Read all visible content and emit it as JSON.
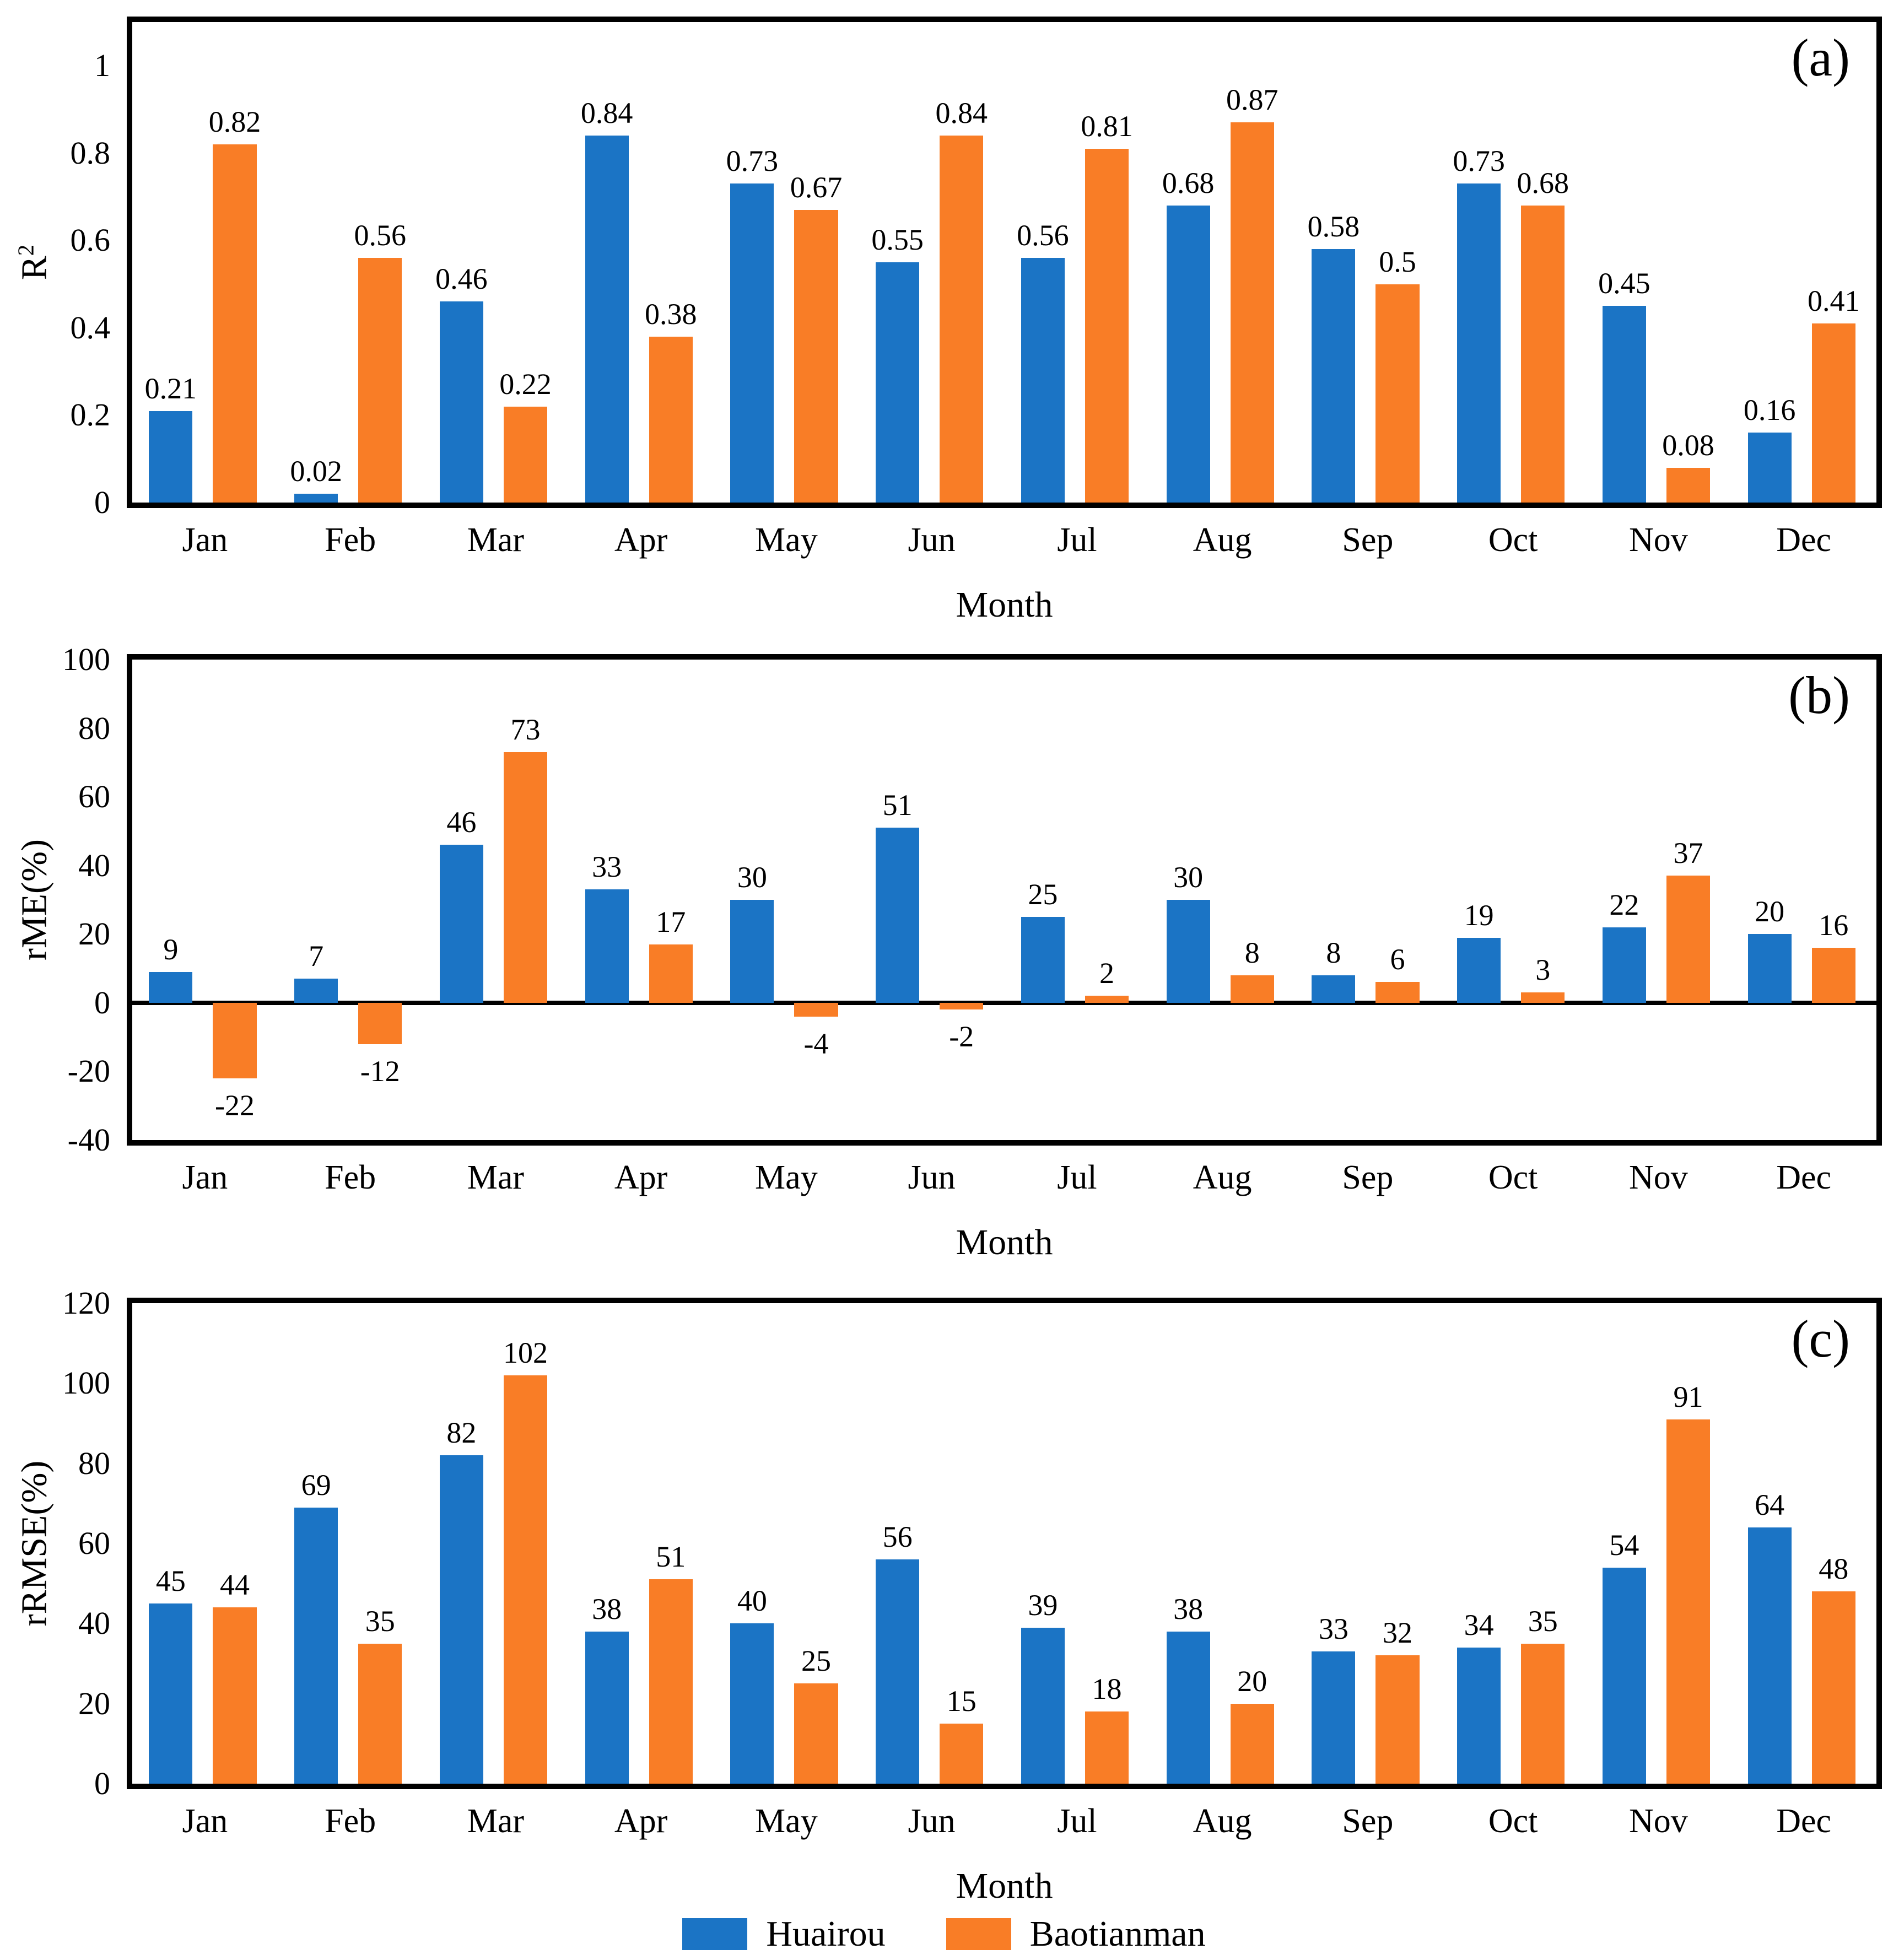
{
  "figure": {
    "xlabel": "Month",
    "months": [
      "Jan",
      "Feb",
      "Mar",
      "Apr",
      "May",
      "Jun",
      "Jul",
      "Aug",
      "Sep",
      "Oct",
      "Nov",
      "Dec"
    ],
    "colors": {
      "huairou": "#1B74C5",
      "baotianman": "#F97D26",
      "axis": "#000000"
    },
    "legend": [
      {
        "label": "Huairou",
        "color": "#1B74C5"
      },
      {
        "label": "Baotianman",
        "color": "#F97D26"
      }
    ]
  },
  "chart_data": [
    {
      "type": "bar",
      "panel_label": "(a)",
      "ylabel_base": "R",
      "ylabel_sup": "2",
      "xlabel": "Month",
      "legend_position": "bottom",
      "grid": false,
      "categories": [
        "Jan",
        "Feb",
        "Mar",
        "Apr",
        "May",
        "Jun",
        "Jul",
        "Aug",
        "Sep",
        "Oct",
        "Nov",
        "Dec"
      ],
      "ylim": [
        0,
        1.1
      ],
      "yticks": [
        {
          "v": 1,
          "t": "1"
        },
        {
          "v": 0.8,
          "t": "0.8"
        },
        {
          "v": 0.6,
          "t": "0.6"
        },
        {
          "v": 0.4,
          "t": "0.4"
        },
        {
          "v": 0.2,
          "t": "0.2"
        },
        {
          "v": 0,
          "t": "0"
        }
      ],
      "series": [
        {
          "name": "Huairou",
          "color": "#1B74C5",
          "values": [
            0.21,
            0.02,
            0.46,
            0.84,
            0.73,
            0.55,
            0.56,
            0.68,
            0.58,
            0.73,
            0.45,
            0.16
          ],
          "labels": [
            "0.21",
            "0.02",
            "0.46",
            "0.84",
            "0.73",
            "0.55",
            "0.56",
            "0.68",
            "0.58",
            "0.73",
            "0.45",
            "0.16"
          ]
        },
        {
          "name": "Baotianman",
          "color": "#F97D26",
          "values": [
            0.82,
            0.56,
            0.22,
            0.38,
            0.67,
            0.84,
            0.81,
            0.87,
            0.5,
            0.68,
            0.08,
            0.41
          ],
          "labels": [
            "0.82",
            "0.56",
            "0.22",
            "0.38",
            "0.67",
            "0.84",
            "0.81",
            "0.87",
            "0.5",
            "0.68",
            "0.08",
            "0.41"
          ]
        }
      ]
    },
    {
      "type": "bar",
      "panel_label": "(b)",
      "ylabel_base": "rME(%)",
      "ylabel_sup": "",
      "xlabel": "Month",
      "legend_position": "bottom",
      "grid": false,
      "categories": [
        "Jan",
        "Feb",
        "Mar",
        "Apr",
        "May",
        "Jun",
        "Jul",
        "Aug",
        "Sep",
        "Oct",
        "Nov",
        "Dec"
      ],
      "ylim": [
        -40,
        100
      ],
      "yticks": [
        {
          "v": 100,
          "t": "100"
        },
        {
          "v": 80,
          "t": "80"
        },
        {
          "v": 60,
          "t": "60"
        },
        {
          "v": 40,
          "t": "40"
        },
        {
          "v": 20,
          "t": "20"
        },
        {
          "v": 0,
          "t": "0"
        },
        {
          "v": -20,
          "t": "-20"
        },
        {
          "v": -40,
          "t": "-40"
        }
      ],
      "series": [
        {
          "name": "Huairou",
          "color": "#1B74C5",
          "values": [
            9,
            7,
            46,
            33,
            30,
            51,
            25,
            30,
            8,
            19,
            22,
            20
          ],
          "labels": [
            "9",
            "7",
            "46",
            "33",
            "30",
            "51",
            "25",
            "30",
            "8",
            "19",
            "22",
            "20"
          ]
        },
        {
          "name": "Baotianman",
          "color": "#F97D26",
          "values": [
            -22,
            -12,
            73,
            17,
            -4,
            -2,
            2,
            8,
            6,
            3,
            37,
            16
          ],
          "labels": [
            "-22",
            "-12",
            "73",
            "17",
            "-4",
            "-2",
            "2",
            "8",
            "6",
            "3",
            "37",
            "16"
          ]
        }
      ]
    },
    {
      "type": "bar",
      "panel_label": "(c)",
      "ylabel_base": "rRMSE(%)",
      "ylabel_sup": "",
      "xlabel": "Month",
      "legend_position": "bottom",
      "grid": false,
      "categories": [
        "Jan",
        "Feb",
        "Mar",
        "Apr",
        "May",
        "Jun",
        "Jul",
        "Aug",
        "Sep",
        "Oct",
        "Nov",
        "Dec"
      ],
      "ylim": [
        0,
        120
      ],
      "yticks": [
        {
          "v": 120,
          "t": "120"
        },
        {
          "v": 100,
          "t": "100"
        },
        {
          "v": 80,
          "t": "80"
        },
        {
          "v": 60,
          "t": "60"
        },
        {
          "v": 40,
          "t": "40"
        },
        {
          "v": 20,
          "t": "20"
        },
        {
          "v": 0,
          "t": "0"
        }
      ],
      "series": [
        {
          "name": "Huairou",
          "color": "#1B74C5",
          "values": [
            45,
            69,
            82,
            38,
            40,
            56,
            39,
            38,
            33,
            34,
            54,
            64
          ],
          "labels": [
            "45",
            "69",
            "82",
            "38",
            "40",
            "56",
            "39",
            "38",
            "33",
            "34",
            "54",
            "64"
          ]
        },
        {
          "name": "Baotianman",
          "color": "#F97D26",
          "values": [
            44,
            35,
            102,
            51,
            25,
            15,
            18,
            20,
            32,
            35,
            91,
            48
          ],
          "labels": [
            "44",
            "35",
            "102",
            "51",
            "25",
            "15",
            "18",
            "20",
            "32",
            "35",
            "91",
            "48"
          ]
        }
      ]
    }
  ]
}
